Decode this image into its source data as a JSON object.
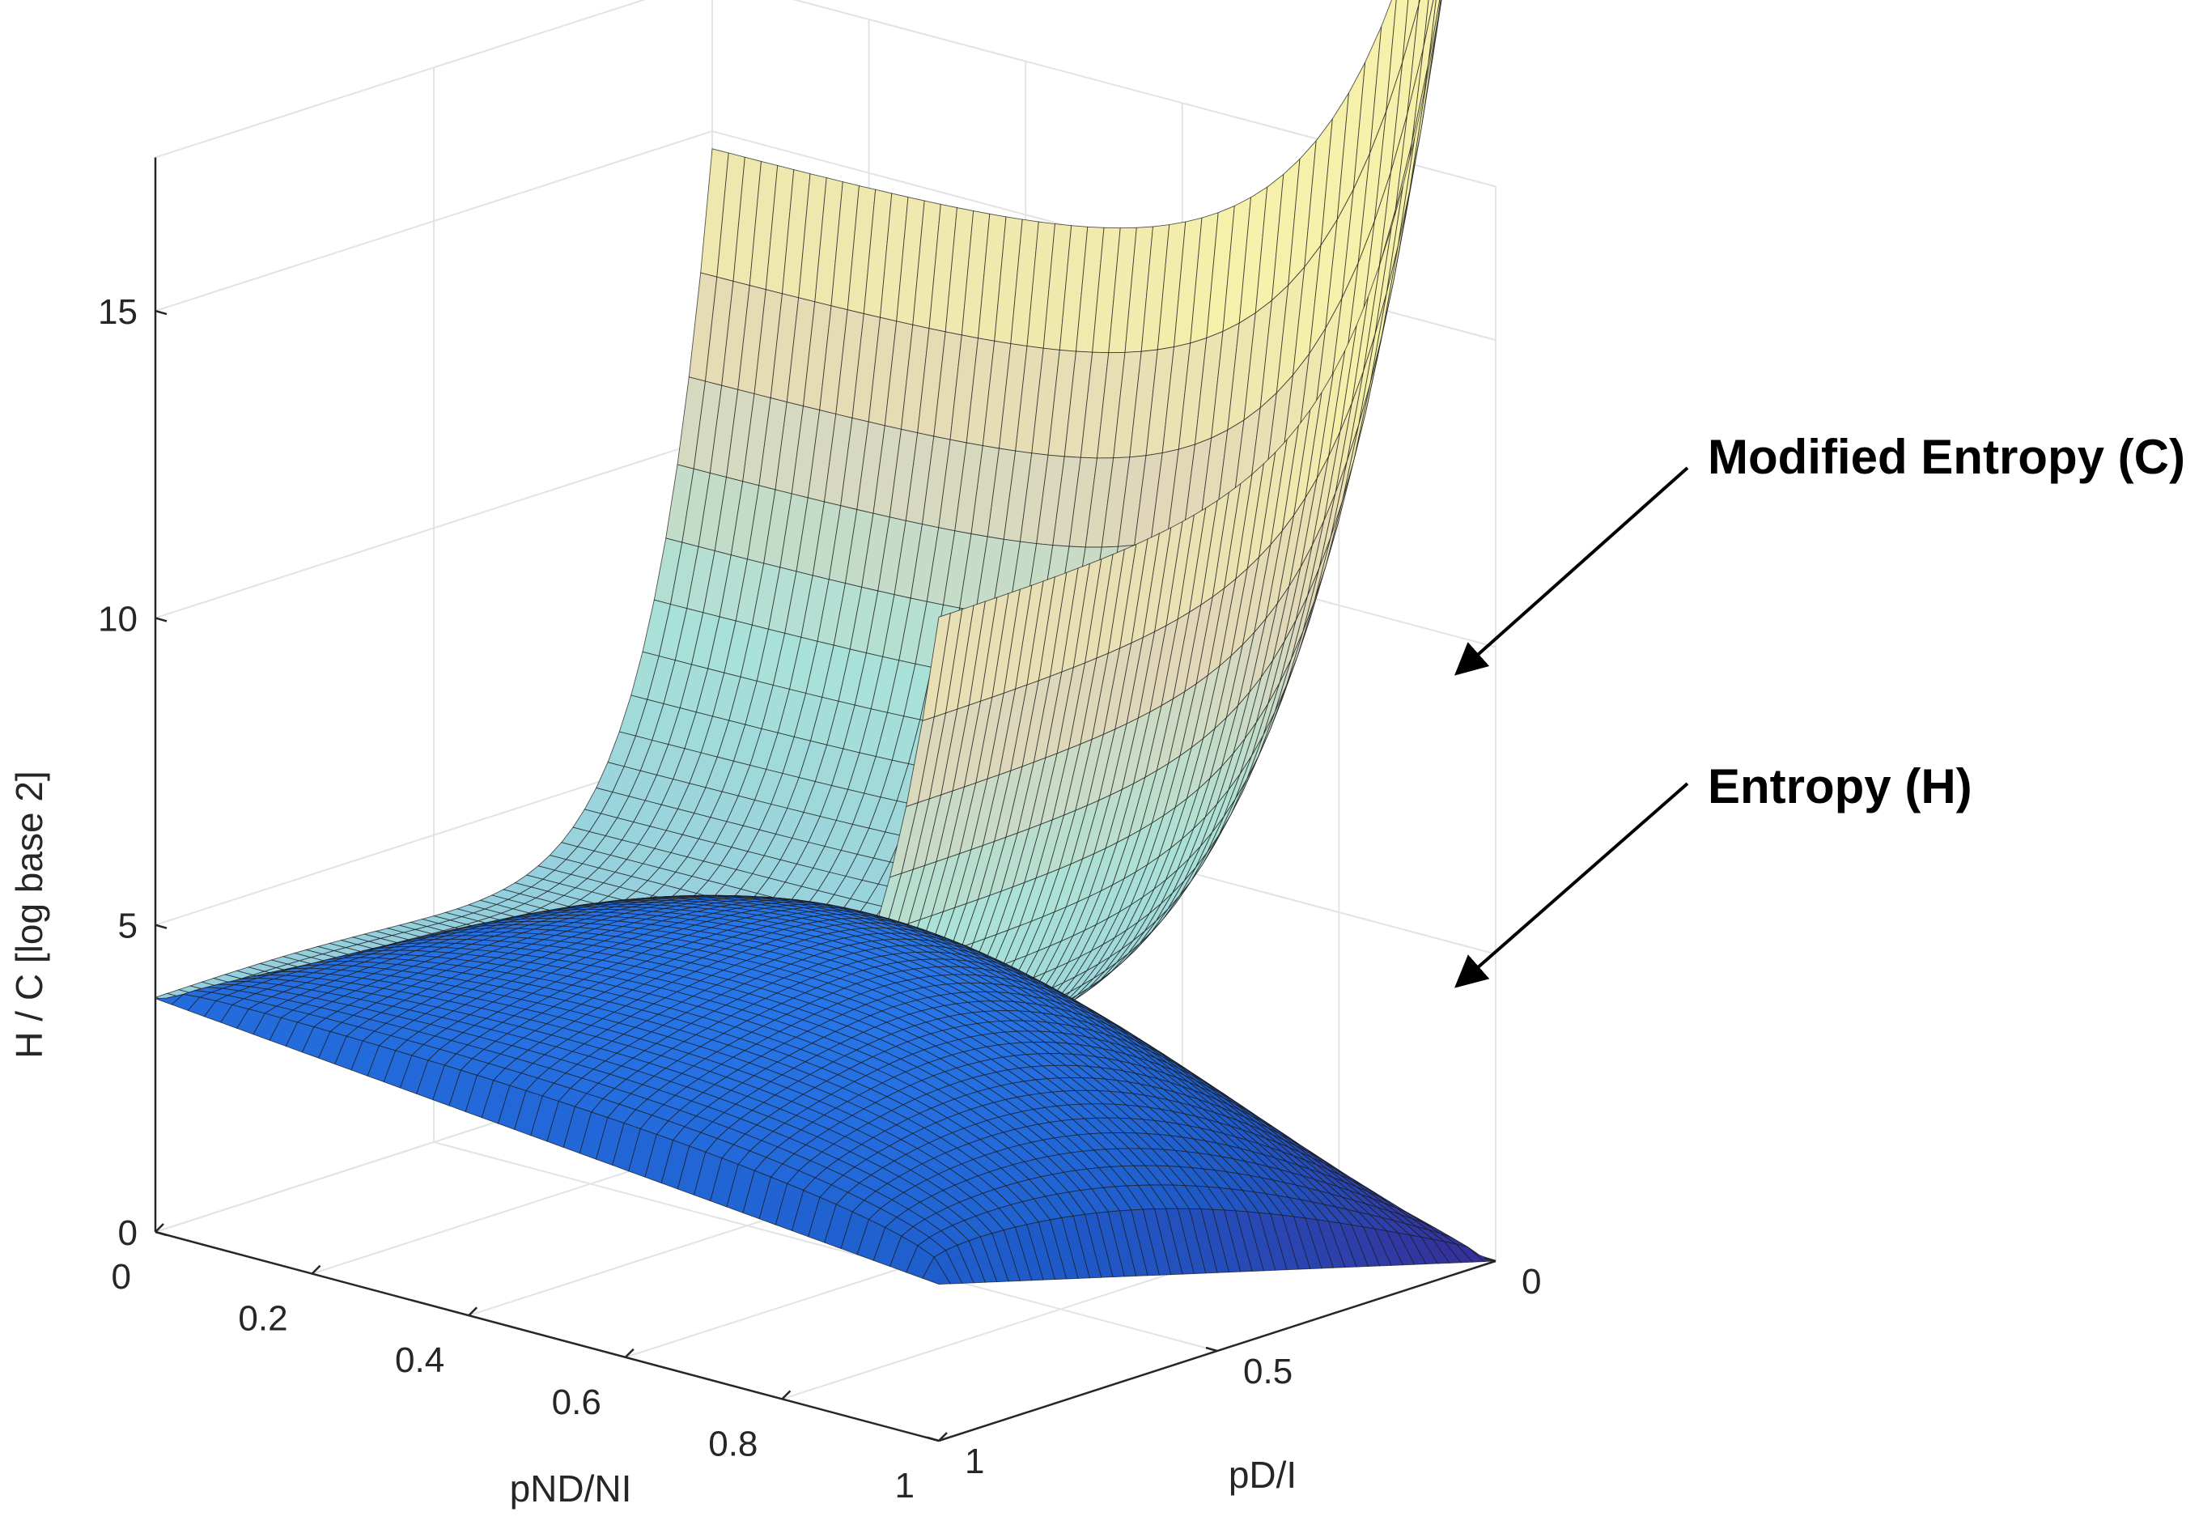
{
  "chart_data": {
    "type": "surface3d",
    "title": "",
    "xlabel": "pND/NI",
    "ylabel": "pD/I",
    "zlabel": "H / C [log base 2]",
    "xlim": [
      0,
      1
    ],
    "ylim": [
      0,
      1
    ],
    "zlim": [
      0,
      15
    ],
    "x_ticks": [
      "0",
      "0.2",
      "0.4",
      "0.6",
      "0.8",
      "1"
    ],
    "y_ticks": [
      "0",
      "0.5",
      "1"
    ],
    "z_ticks": [
      "0",
      "5",
      "10",
      "15"
    ],
    "grid": true,
    "series": [
      {
        "name": "Modified Entropy (C)",
        "colormap": "parula-light",
        "corner_values": {
          "x0_y0": 15.0,
          "x0_y1": 13.4,
          "x1_y0": 14.7,
          "x1_y1": 0.0
        },
        "center_value": 3.8
      },
      {
        "name": "Entropy (H)",
        "colormap": "blue",
        "corner_values": {
          "x0_y0": 3.8,
          "x0_y1": 2.2,
          "x1_y0": 3.5,
          "x1_y1": 0.0
        },
        "center_value": 4.8
      }
    ],
    "annotations": [
      "Modified Entropy (C)",
      "Entropy (H)"
    ]
  }
}
